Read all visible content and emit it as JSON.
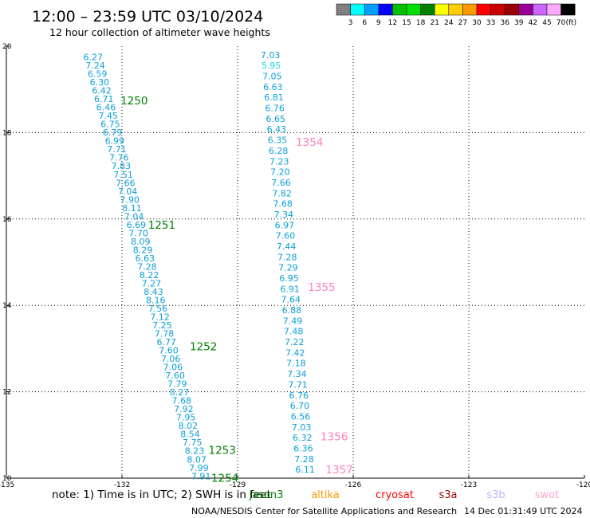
{
  "header": {
    "title": "12:00 – 23:59 UTC 03/10/2024",
    "subtitle": "12 hour collection of altimeter wave heights"
  },
  "color_scale": {
    "labels": [
      "3",
      "6",
      "9",
      "12",
      "15",
      "18",
      "21",
      "24",
      "27",
      "30",
      "33",
      "36",
      "39",
      "42",
      "45",
      "70"
    ],
    "unit": "(ft)",
    "colors": [
      "#808080",
      "#00ffff",
      "#00a0ff",
      "#0000ff",
      "#00c000",
      "#00e000",
      "#008000",
      "#ffff00",
      "#ffcc00",
      "#ff9900",
      "#ff0000",
      "#cc0000",
      "#990000",
      "#990099",
      "#cc66ff",
      "#ffaaff",
      "#000000"
    ]
  },
  "chart_data": {
    "type": "scatter",
    "title": "12:00 – 23:59 UTC 03/10/2024",
    "subtitle": "12 hour collection of altimeter wave heights",
    "xlim": [
      -135,
      -120
    ],
    "ylim": [
      10,
      20
    ],
    "x_ticks": [
      "-135",
      "-132",
      "-129",
      "-126",
      "-123",
      "-120"
    ],
    "y_ticks": [
      "20",
      "18",
      "16",
      "14",
      "12",
      "10"
    ],
    "grid": true,
    "series": [
      {
        "name": "jason3",
        "color": "#0aa0d8",
        "tracks": [
          {
            "x_start": -132.75,
            "y_start": 19.75,
            "x_end": -129.95,
            "y_end": 10.05,
            "values": [
              "6.27",
              "7.24",
              "6.59",
              "6.30",
              "6.42",
              "6.71",
              "6.46",
              "7.45",
              "6.75",
              "6.79",
              "6.99",
              "7.71",
              "7.76",
              "7.83",
              "7.51",
              "7.66",
              "7.04",
              "7.90",
              "8.11",
              "7.04",
              "6.69",
              "7.70",
              "8.09",
              "8.29",
              "6.63",
              "7.28",
              "8.22",
              "7.27",
              "8.43",
              "8.16",
              "7.56",
              "7.12",
              "7.25",
              "7.78",
              "6.77",
              "7.60",
              "7.06",
              "7.06",
              "7.60",
              "7.79",
              "8.27",
              "7.68",
              "7.92",
              "7.95",
              "8.02",
              "8.54",
              "7.75",
              "8.23",
              "8.07",
              "7.99",
              "7.91"
            ]
          },
          {
            "x_start": -128.15,
            "y_start": 19.8,
            "x_end": -127.25,
            "y_end": 10.2,
            "values": [
              "7.03",
              "5.95",
              "7.05",
              "6.63",
              "6.81",
              "6.76",
              "6.65",
              "6.43",
              "6.35",
              "6.28",
              "7.23",
              "7.20",
              "7.66",
              "7.82",
              "7.68",
              "7.34",
              "6.97",
              "7.60",
              "7.44",
              "7.28",
              "7.29",
              "6.95",
              "6.91",
              "7.64",
              "6.88",
              "7.49",
              "7.48",
              "7.22",
              "7.42",
              "7.18",
              "7.34",
              "7.71",
              "6.76",
              "6.70",
              "6.56",
              "7.03",
              "6.32",
              "6.36",
              "7.28",
              "6.11"
            ]
          }
        ]
      }
    ],
    "annotations": [
      {
        "text": "1250",
        "color": "#008000"
      },
      {
        "text": "1251",
        "color": "#008000"
      },
      {
        "text": "1252",
        "color": "#008000"
      },
      {
        "text": "1253",
        "color": "#008000"
      },
      {
        "text": "1254",
        "color": "#008000"
      },
      {
        "text": "1354",
        "color": "#ff80c0"
      },
      {
        "text": "1355",
        "color": "#ff80c0"
      },
      {
        "text": "1356",
        "color": "#ff80c0"
      },
      {
        "text": "1357",
        "color": "#ff80c0"
      }
    ]
  },
  "note": "note: 1) Time is in UTC; 2) SWH is in feet",
  "satellites": [
    {
      "name": "jason3",
      "color": "#008000"
    },
    {
      "name": "altika",
      "color": "#ff9900"
    },
    {
      "name": "cryosat",
      "color": "#ff0000"
    },
    {
      "name": "s3a",
      "color": "#990000"
    },
    {
      "name": "s3b",
      "color": "#c0b0ff"
    },
    {
      "name": "swot",
      "color": "#ffa0d0"
    }
  ],
  "footer": {
    "org": "NOAA/NESDIS Center for Satellite Applications and Research",
    "timestamp": "14 Dec 01:31:49 UTC 2024"
  }
}
